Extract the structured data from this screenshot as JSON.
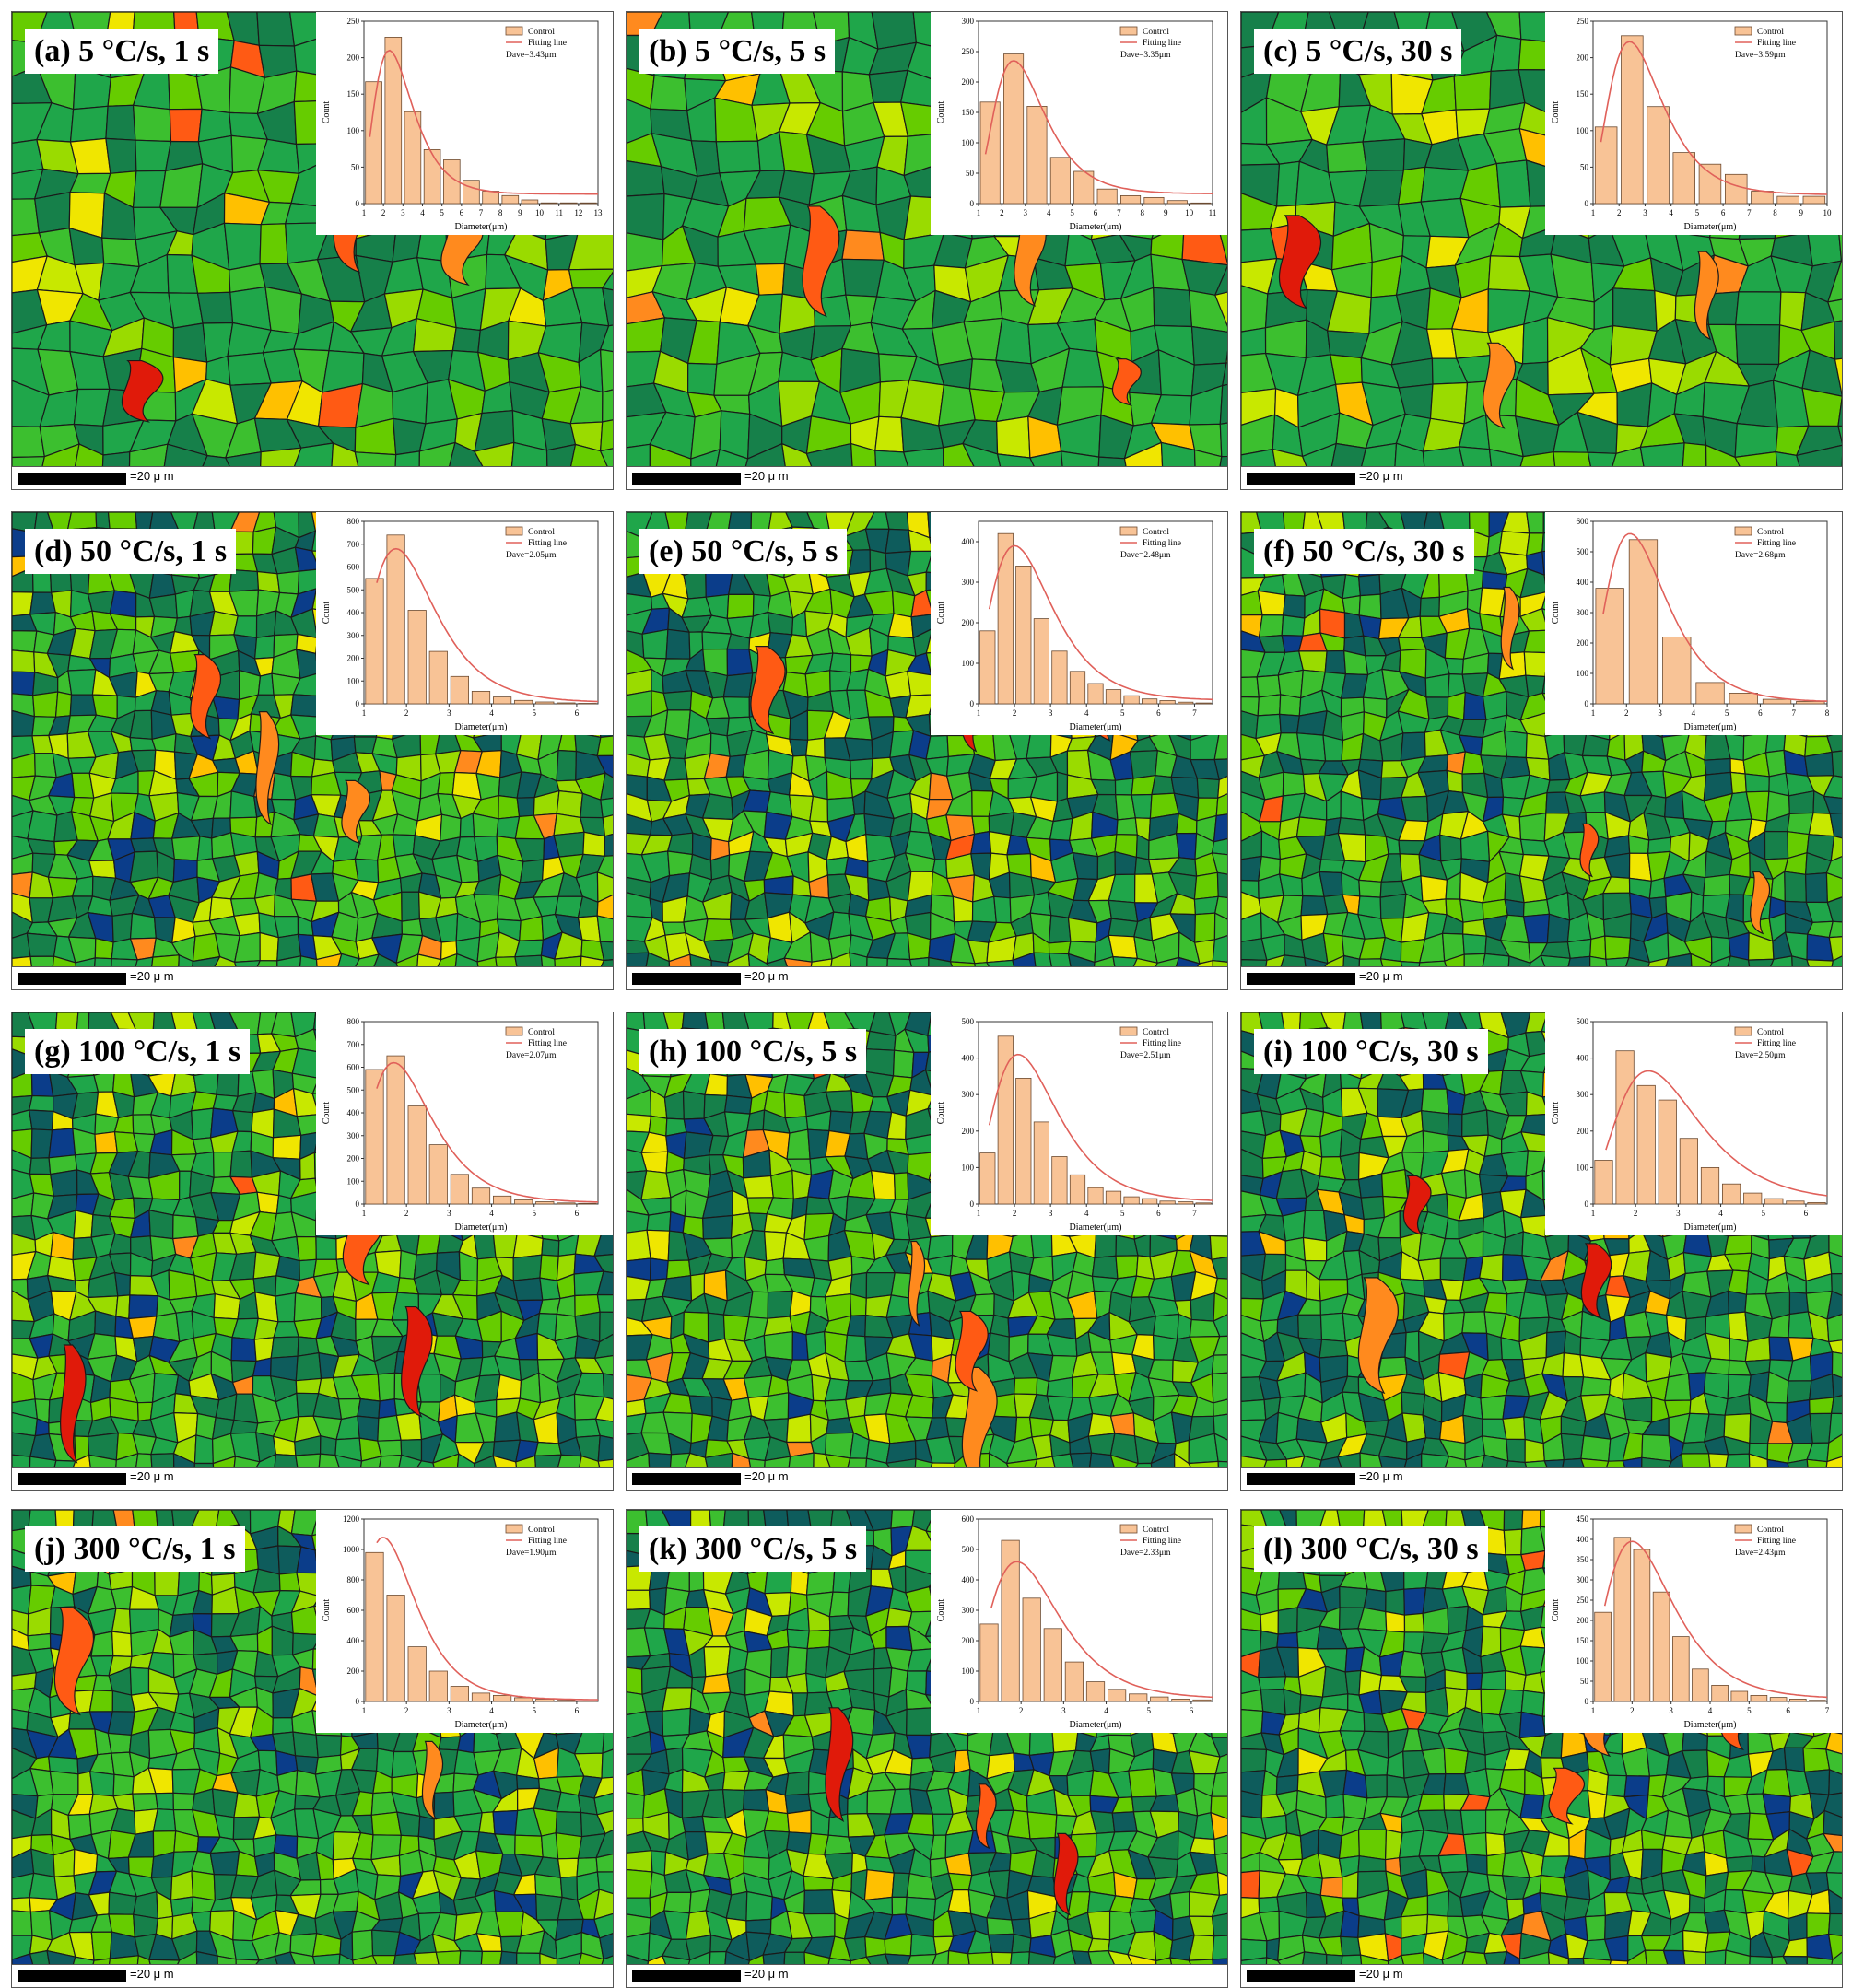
{
  "colors": {
    "bar_fill": "#f8c396",
    "bar_stroke": "#6b4a30",
    "fit_line": "#e0605a",
    "grain_palette": [
      "#0b3d8a",
      "#0e5c5c",
      "#16804a",
      "#1fa64a",
      "#3cbf2f",
      "#66cc00",
      "#9adb00",
      "#c8e800",
      "#f0e600",
      "#ffc000",
      "#ff8a1e",
      "#ff5a14",
      "#e01a0a"
    ]
  },
  "scalebar_text": "=20 μ m",
  "chart_data": [
    {
      "type": "bar",
      "label": "(a) 5 °C/s, 1 s",
      "legend": [
        "Control",
        "Fitting line"
      ],
      "davg": "Dave=3.43μm",
      "xlabel": "Diameter(μm)",
      "ylabel": "Count",
      "xticks": [
        "1",
        "2",
        "3",
        "4",
        "5",
        "6",
        "7",
        "8",
        "9",
        "10",
        "11",
        "12",
        "13"
      ],
      "xlim": [
        1,
        13
      ],
      "ylim": [
        0,
        250
      ],
      "yticks": [
        "0",
        "50",
        "100",
        "150",
        "200",
        "250"
      ],
      "x": [
        1.5,
        2.5,
        3.5,
        4.5,
        5.5,
        6.5,
        7.5,
        8.5,
        9.5,
        10.5,
        11.5,
        12.5
      ],
      "values": [
        167,
        228,
        126,
        74,
        60,
        32,
        17,
        11,
        5,
        1,
        1,
        1
      ],
      "fit": {
        "mode": 2.3,
        "peak": 210,
        "base": 13
      }
    },
    {
      "type": "bar",
      "label": "(b) 5 °C/s, 5 s",
      "legend": [
        "Control",
        "Fitting line"
      ],
      "davg": "Dave=3.35μm",
      "xlabel": "Diameter(μm)",
      "ylabel": "Count",
      "xticks": [
        "1",
        "2",
        "3",
        "4",
        "5",
        "6",
        "7",
        "8",
        "9",
        "10",
        "11"
      ],
      "xlim": [
        1,
        11
      ],
      "ylim": [
        0,
        300
      ],
      "yticks": [
        "0",
        "50",
        "100",
        "150",
        "200",
        "250",
        "300"
      ],
      "x": [
        1.5,
        2.5,
        3.5,
        4.5,
        5.5,
        6.5,
        7.5,
        8.5,
        9.5,
        10.5
      ],
      "values": [
        167,
        246,
        160,
        76,
        53,
        24,
        13,
        10,
        5,
        1
      ],
      "fit": {
        "mode": 2.5,
        "peak": 235,
        "base": 16
      }
    },
    {
      "type": "bar",
      "label": "(c) 5 °C/s, 30 s",
      "legend": [
        "Control",
        "Fitting line"
      ],
      "davg": "Dave=3.59μm",
      "xlabel": "Diameter(μm)",
      "ylabel": "Count",
      "xticks": [
        "1",
        "2",
        "3",
        "4",
        "5",
        "6",
        "7",
        "8",
        "9",
        "10"
      ],
      "xlim": [
        1,
        10
      ],
      "ylim": [
        0,
        250
      ],
      "yticks": [
        "0",
        "50",
        "100",
        "150",
        "200",
        "250"
      ],
      "x": [
        1.5,
        2.5,
        3.5,
        4.5,
        5.5,
        6.5,
        7.5,
        8.5,
        9.5
      ],
      "values": [
        105,
        230,
        133,
        70,
        54,
        40,
        17,
        10,
        10
      ],
      "fit": {
        "mode": 2.4,
        "peak": 222,
        "base": 12
      }
    },
    {
      "type": "bar",
      "label": "(d) 50 °C/s, 1 s",
      "legend": [
        "Control",
        "Fitting line"
      ],
      "davg": "Dave=2.05μm",
      "xlabel": "Diameter(μm)",
      "ylabel": "Count",
      "xticks": [
        "1",
        "2",
        "3",
        "4",
        "5",
        "6"
      ],
      "xlim": [
        1,
        6.5
      ],
      "ylim": [
        0,
        800
      ],
      "yticks": [
        "0",
        "100",
        "200",
        "300",
        "400",
        "500",
        "600",
        "700",
        "800"
      ],
      "x": [
        1.25,
        1.75,
        2.25,
        2.75,
        3.25,
        3.75,
        4.25,
        4.75,
        5.25,
        5.75,
        6.25
      ],
      "values": [
        550,
        740,
        410,
        230,
        120,
        55,
        30,
        15,
        8,
        4,
        2
      ],
      "fit": {
        "mode": 1.75,
        "peak": 680,
        "base": 5
      }
    },
    {
      "type": "bar",
      "label": "(e) 50 °C/s, 5 s",
      "legend": [
        "Control",
        "Fitting line"
      ],
      "davg": "Dave=2.48μm",
      "xlabel": "Diameter(μm)",
      "ylabel": "Count",
      "xticks": [
        "1",
        "2",
        "3",
        "4",
        "5",
        "6",
        "7"
      ],
      "xlim": [
        1,
        7.5
      ],
      "ylim": [
        0,
        450
      ],
      "yticks": [
        "0",
        "100",
        "200",
        "300",
        "400"
      ],
      "x": [
        1.25,
        1.75,
        2.25,
        2.75,
        3.25,
        3.75,
        4.25,
        4.75,
        5.25,
        5.75,
        6.25,
        6.75,
        7.25
      ],
      "values": [
        180,
        420,
        340,
        210,
        130,
        80,
        50,
        35,
        20,
        12,
        8,
        4,
        2
      ],
      "fit": {
        "mode": 2.0,
        "peak": 390,
        "base": 8
      }
    },
    {
      "type": "bar",
      "label": "(f) 50 °C/s, 30 s",
      "legend": [
        "Control",
        "Fitting line"
      ],
      "davg": "Dave=2.68μm",
      "xlabel": "Diameter(μm)",
      "ylabel": "Count",
      "xticks": [
        "1",
        "2",
        "3",
        "4",
        "5",
        "6",
        "7",
        "8"
      ],
      "xlim": [
        1,
        8
      ],
      "ylim": [
        0,
        600
      ],
      "yticks": [
        "0",
        "100",
        "200",
        "300",
        "400",
        "500",
        "600"
      ],
      "x": [
        1.5,
        2.5,
        3.5,
        4.5,
        5.5,
        6.5,
        7.5
      ],
      "values": [
        380,
        540,
        220,
        70,
        35,
        15,
        8
      ],
      "fit": {
        "mode": 2.1,
        "peak": 560,
        "base": 5
      }
    },
    {
      "type": "bar",
      "label": "(g) 100 °C/s, 1 s",
      "legend": [
        "Control",
        "Fitting line"
      ],
      "davg": "Dave=2.07μm",
      "xlabel": "Diameter(μm)",
      "ylabel": "Count",
      "xticks": [
        "1",
        "2",
        "3",
        "4",
        "5",
        "6"
      ],
      "xlim": [
        1,
        6.5
      ],
      "ylim": [
        0,
        800
      ],
      "yticks": [
        "0",
        "100",
        "200",
        "300",
        "400",
        "500",
        "600",
        "700",
        "800"
      ],
      "x": [
        1.25,
        1.75,
        2.25,
        2.75,
        3.25,
        3.75,
        4.25,
        4.75,
        5.25,
        5.75,
        6.25
      ],
      "values": [
        590,
        650,
        430,
        260,
        130,
        70,
        35,
        18,
        10,
        5,
        3
      ],
      "fit": {
        "mode": 1.7,
        "peak": 620,
        "base": 5
      }
    },
    {
      "type": "bar",
      "label": "(h) 100 °C/s, 5 s",
      "legend": [
        "Control",
        "Fitting line"
      ],
      "davg": "Dave=2.51μm",
      "xlabel": "Diameter(μm)",
      "ylabel": "Count",
      "xticks": [
        "1",
        "2",
        "3",
        "4",
        "5",
        "6",
        "7"
      ],
      "xlim": [
        1,
        7.5
      ],
      "ylim": [
        0,
        500
      ],
      "yticks": [
        "0",
        "100",
        "200",
        "300",
        "400",
        "500"
      ],
      "x": [
        1.25,
        1.75,
        2.25,
        2.75,
        3.25,
        3.75,
        4.25,
        4.75,
        5.25,
        5.75,
        6.25,
        6.75,
        7.25
      ],
      "values": [
        140,
        460,
        345,
        225,
        130,
        80,
        45,
        35,
        20,
        15,
        8,
        6,
        3
      ],
      "fit": {
        "mode": 2.1,
        "peak": 410,
        "base": 6
      }
    },
    {
      "type": "bar",
      "label": "(i) 100 °C/s, 30 s",
      "legend": [
        "Control",
        "Fitting line"
      ],
      "davg": "Dave=2.50μm",
      "xlabel": "Diameter(μm)",
      "ylabel": "Count",
      "xticks": [
        "1",
        "2",
        "3",
        "4",
        "5",
        "6"
      ],
      "xlim": [
        1,
        6.5
      ],
      "ylim": [
        0,
        500
      ],
      "yticks": [
        "0",
        "100",
        "200",
        "300",
        "400",
        "500"
      ],
      "x": [
        1.25,
        1.75,
        2.25,
        2.75,
        3.25,
        3.75,
        4.25,
        4.75,
        5.25,
        5.75,
        6.25
      ],
      "values": [
        120,
        420,
        325,
        285,
        180,
        100,
        55,
        30,
        15,
        8,
        4
      ],
      "fit": {
        "mode": 2.3,
        "peak": 365,
        "base": 6
      }
    },
    {
      "type": "bar",
      "label": "(j) 300 °C/s, 1 s",
      "legend": [
        "Control",
        "Fitting line"
      ],
      "davg": "Dave=1.90μm",
      "xlabel": "Diameter(μm)",
      "ylabel": "Count",
      "xticks": [
        "1",
        "2",
        "3",
        "4",
        "5",
        "6"
      ],
      "xlim": [
        1,
        6.5
      ],
      "ylim": [
        0,
        1200
      ],
      "yticks": [
        "0",
        "200",
        "400",
        "600",
        "800",
        "1000",
        "1200"
      ],
      "x": [
        1.25,
        1.75,
        2.25,
        2.75,
        3.25,
        3.75,
        4.25,
        4.75,
        5.25,
        5.75,
        6.25
      ],
      "values": [
        980,
        700,
        360,
        200,
        100,
        55,
        40,
        25,
        15,
        8,
        4
      ],
      "fit": {
        "mode": 1.45,
        "peak": 1080,
        "base": 10
      }
    },
    {
      "type": "bar",
      "label": "(k) 300 °C/s, 5 s",
      "legend": [
        "Control",
        "Fitting line"
      ],
      "davg": "Dave=2.33μm",
      "xlabel": "Diameter(μm)",
      "ylabel": "Count",
      "xticks": [
        "1",
        "2",
        "3",
        "4",
        "5",
        "6"
      ],
      "xlim": [
        1,
        6.5
      ],
      "ylim": [
        0,
        600
      ],
      "yticks": [
        "0",
        "100",
        "200",
        "300",
        "400",
        "500",
        "600"
      ],
      "x": [
        1.25,
        1.75,
        2.25,
        2.75,
        3.25,
        3.75,
        4.25,
        4.75,
        5.25,
        5.75,
        6.25
      ],
      "values": [
        255,
        530,
        340,
        240,
        130,
        65,
        40,
        25,
        15,
        8,
        5
      ],
      "fit": {
        "mode": 1.9,
        "peak": 460,
        "base": 8
      }
    },
    {
      "type": "bar",
      "label": "(l) 300 °C/s, 30 s",
      "legend": [
        "Control",
        "Fitting line"
      ],
      "davg": "Dave=2.43μm",
      "xlabel": "Diameter(μm)",
      "ylabel": "Count",
      "xticks": [
        "1",
        "2",
        "3",
        "4",
        "5",
        "6",
        "7"
      ],
      "xlim": [
        1,
        7
      ],
      "ylim": [
        0,
        450
      ],
      "yticks": [
        "0",
        "50",
        "100",
        "150",
        "200",
        "250",
        "300",
        "350",
        "400",
        "450"
      ],
      "x": [
        1.25,
        1.75,
        2.25,
        2.75,
        3.25,
        3.75,
        4.25,
        4.75,
        5.25,
        5.75,
        6.25,
        6.75
      ],
      "values": [
        220,
        405,
        375,
        270,
        160,
        80,
        40,
        25,
        15,
        10,
        6,
        3
      ],
      "fit": {
        "mode": 2.0,
        "peak": 395,
        "base": 6
      }
    }
  ]
}
